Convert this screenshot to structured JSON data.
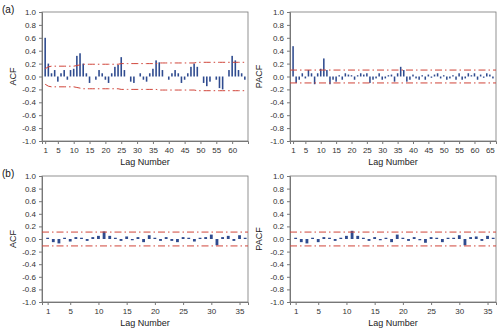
{
  "chart_data": [
    {
      "type": "bar",
      "title": "(a)",
      "y_label": "ACF",
      "x_label": "Lag Number",
      "color": "#2f4b8f",
      "x": [
        1,
        2,
        3,
        4,
        5,
        6,
        7,
        8,
        9,
        10,
        11,
        12,
        13,
        14,
        15,
        16,
        17,
        18,
        19,
        20,
        21,
        22,
        23,
        24,
        25,
        26,
        27,
        28,
        29,
        30,
        31,
        32,
        33,
        34,
        35,
        36,
        37,
        38,
        39,
        40,
        41,
        42,
        43,
        44,
        45,
        46,
        47,
        48,
        49,
        50,
        51,
        52,
        53,
        54,
        55,
        56,
        57,
        58,
        59,
        60,
        61,
        62,
        63,
        64
      ],
      "values": [
        0.6,
        0.2,
        0.05,
        0.1,
        -0.08,
        0.05,
        0.1,
        -0.05,
        0.1,
        0.12,
        0.32,
        0.36,
        0.2,
        0.05,
        -0.1,
        0,
        -0.05,
        0.1,
        0.05,
        -0.05,
        -0.1,
        0.05,
        0.15,
        0.18,
        0.3,
        0.1,
        0,
        -0.08,
        -0.1,
        0,
        0.05,
        -0.05,
        -0.08,
        0.05,
        0.12,
        0.25,
        0.22,
        0.1,
        0,
        -0.05,
        0.05,
        0.1,
        0.05,
        -0.1,
        -0.05,
        0.05,
        0.15,
        0.2,
        0.15,
        0,
        -0.1,
        -0.15,
        -0.08,
        0,
        -0.05,
        -0.18,
        -0.2,
        0,
        0.1,
        0.32,
        0.25,
        0.1,
        0.05,
        -0.05
      ],
      "confidence_limits": {
        "color": "#d0453a",
        "line_style": "dashdot",
        "upper": [
          0.12,
          0.15,
          0.16,
          0.16,
          0.16,
          0.16,
          0.16,
          0.16,
          0.16,
          0.16,
          0.17,
          0.18,
          0.19,
          0.19,
          0.19,
          0.19,
          0.19,
          0.19,
          0.19,
          0.19,
          0.19,
          0.19,
          0.19,
          0.19,
          0.2,
          0.2,
          0.2,
          0.2,
          0.2,
          0.2,
          0.2,
          0.2,
          0.2,
          0.2,
          0.2,
          0.2,
          0.21,
          0.21,
          0.21,
          0.21,
          0.21,
          0.21,
          0.21,
          0.21,
          0.21,
          0.21,
          0.21,
          0.21,
          0.22,
          0.22,
          0.22,
          0.22,
          0.22,
          0.22,
          0.22,
          0.22,
          0.22,
          0.22,
          0.22,
          0.22,
          0.22,
          0.22,
          0.22,
          0.22
        ],
        "lower": [
          -0.12,
          -0.15,
          -0.16,
          -0.16,
          -0.16,
          -0.16,
          -0.16,
          -0.16,
          -0.16,
          -0.16,
          -0.17,
          -0.18,
          -0.19,
          -0.19,
          -0.19,
          -0.19,
          -0.19,
          -0.19,
          -0.19,
          -0.19,
          -0.19,
          -0.19,
          -0.19,
          -0.19,
          -0.2,
          -0.2,
          -0.2,
          -0.2,
          -0.2,
          -0.2,
          -0.2,
          -0.2,
          -0.2,
          -0.2,
          -0.2,
          -0.2,
          -0.21,
          -0.21,
          -0.21,
          -0.21,
          -0.21,
          -0.21,
          -0.21,
          -0.21,
          -0.21,
          -0.21,
          -0.21,
          -0.21,
          -0.22,
          -0.22,
          -0.22,
          -0.22,
          -0.22,
          -0.22,
          -0.22,
          -0.22,
          -0.22,
          -0.22,
          -0.22,
          -0.22,
          -0.22,
          -0.22,
          -0.22,
          -0.22
        ]
      },
      "xlim": [
        0,
        65
      ],
      "xticks": [
        1,
        5,
        10,
        15,
        20,
        25,
        30,
        35,
        40,
        45,
        50,
        55,
        60
      ],
      "ylim": [
        -1,
        1
      ],
      "yticks": [
        {
          "value": -1,
          "label": "-1.0"
        },
        {
          "value": -0.8,
          "label": "-0.8"
        },
        {
          "value": -0.6,
          "label": "-0.6"
        },
        {
          "value": -0.4,
          "label": "-0.4"
        },
        {
          "value": -0.2,
          "label": "-0.2"
        },
        {
          "value": 0,
          "label": "0.0"
        },
        {
          "value": 0.2,
          "label": "0.2"
        },
        {
          "value": 0.4,
          "label": "0.4"
        },
        {
          "value": 0.6,
          "label": "0.6"
        },
        {
          "value": 0.8,
          "label": "0.8"
        },
        {
          "value": 1,
          "label": "1.0"
        }
      ]
    },
    {
      "type": "bar",
      "y_label": "PACF",
      "x_label": "Lag Number",
      "color": "#2f4b8f",
      "x": [
        1,
        2,
        3,
        4,
        5,
        6,
        7,
        8,
        9,
        10,
        11,
        12,
        13,
        14,
        15,
        16,
        17,
        18,
        19,
        20,
        21,
        22,
        23,
        24,
        25,
        26,
        27,
        28,
        29,
        30,
        31,
        32,
        33,
        34,
        35,
        36,
        37,
        38,
        39,
        40,
        41,
        42,
        43,
        44,
        45,
        46,
        47,
        48,
        49,
        50,
        51,
        52,
        53,
        54,
        55,
        56,
        57,
        58,
        59,
        60,
        61,
        62,
        63,
        64,
        65,
        66
      ],
      "values": [
        0.47,
        -0.1,
        -0.05,
        0.05,
        -0.03,
        0.1,
        0.05,
        -0.12,
        0.05,
        0.12,
        0.28,
        0.1,
        -0.12,
        -0.05,
        -0.08,
        0.02,
        -0.05,
        0.05,
        0.03,
        0.02,
        -0.05,
        0.02,
        0.05,
        0.03,
        0.05,
        -0.1,
        -0.05,
        -0.03,
        0.05,
        -0.05,
        -0.03,
        0.02,
        0.03,
        -0.08,
        0.05,
        0.15,
        0.1,
        -0.08,
        -0.05,
        0.03,
        -0.03,
        -0.05,
        0.02,
        -0.05,
        0.03,
        -0.02,
        0.03,
        0.05,
        -0.03,
        0.02,
        -0.05,
        -0.03,
        0.02,
        -0.05,
        0.05,
        -0.05,
        -0.03,
        0.05,
        0.02,
        0.05,
        -0.05,
        0.03,
        -0.02,
        0.05,
        0.03,
        -0.03
      ],
      "confidence_limits": {
        "color": "#d0453a",
        "line_style": "dashdot",
        "upper": 0.1,
        "lower": -0.1
      },
      "xlim": [
        0,
        67
      ],
      "xticks": [
        1,
        5,
        10,
        15,
        20,
        25,
        30,
        35,
        40,
        45,
        50,
        55,
        60,
        65
      ],
      "ylim": [
        -1,
        1
      ],
      "yticks": [
        {
          "value": -1,
          "label": "-1.0"
        },
        {
          "value": -0.8,
          "label": "-0.8"
        },
        {
          "value": -0.6,
          "label": "-0.6"
        },
        {
          "value": -0.4,
          "label": "-0.4"
        },
        {
          "value": -0.2,
          "label": "-0.2"
        },
        {
          "value": 0,
          "label": "0.0"
        },
        {
          "value": 0.2,
          "label": "0.2"
        },
        {
          "value": 0.4,
          "label": "0.4"
        },
        {
          "value": 0.6,
          "label": "0.6"
        },
        {
          "value": 0.8,
          "label": "0.8"
        },
        {
          "value": 1,
          "label": "1.0"
        }
      ]
    },
    {
      "type": "bar",
      "title": "(b)",
      "y_label": "ACF",
      "x_label": "Lag Number",
      "color": "#2f4b8f",
      "x": [
        1,
        2,
        3,
        4,
        5,
        6,
        7,
        8,
        9,
        10,
        11,
        12,
        13,
        14,
        15,
        16,
        17,
        18,
        19,
        20,
        21,
        22,
        23,
        24,
        25,
        26,
        27,
        28,
        29,
        30,
        31,
        32,
        33,
        34,
        35,
        36
      ],
      "values": [
        0.02,
        -0.05,
        -0.07,
        0.02,
        -0.04,
        0.03,
        0.02,
        -0.03,
        0.03,
        0.05,
        0.12,
        0.05,
        0.02,
        -0.03,
        0.04,
        -0.02,
        0.03,
        -0.05,
        0.06,
        0.02,
        -0.03,
        0.03,
        -0.03,
        -0.05,
        0.03,
        0.02,
        -0.04,
        0.02,
        0.03,
        0.07,
        -0.1,
        0.03,
        0.05,
        -0.03,
        0.06,
        0.02
      ],
      "confidence_limits": {
        "color": "#d0453a",
        "line_style": "dashdot",
        "upper": 0.11,
        "lower": -0.11
      },
      "xlim": [
        0,
        36.5
      ],
      "xticks": [
        1,
        5,
        10,
        15,
        20,
        25,
        30,
        35
      ],
      "ylim": [
        -1,
        1
      ],
      "yticks": [
        {
          "value": -1,
          "label": "-1.0"
        },
        {
          "value": -0.8,
          "label": "-0.8"
        },
        {
          "value": -0.6,
          "label": "-0.6"
        },
        {
          "value": -0.4,
          "label": "-0.4"
        },
        {
          "value": -0.2,
          "label": "-0.2"
        },
        {
          "value": 0,
          "label": "0.0"
        },
        {
          "value": 0.2,
          "label": "0.2"
        },
        {
          "value": 0.4,
          "label": "0.4"
        },
        {
          "value": 0.6,
          "label": "0.6"
        },
        {
          "value": 0.8,
          "label": "0.8"
        },
        {
          "value": 1,
          "label": "1.0"
        }
      ]
    },
    {
      "type": "bar",
      "y_label": "PACF",
      "x_label": "Lag Number",
      "color": "#2f4b8f",
      "x": [
        1,
        2,
        3,
        4,
        5,
        6,
        7,
        8,
        9,
        10,
        11,
        12,
        13,
        14,
        15,
        16,
        17,
        18,
        19,
        20,
        21,
        22,
        23,
        24,
        25,
        26,
        27,
        28,
        29,
        30,
        31,
        32,
        33,
        34,
        35,
        36
      ],
      "values": [
        0.02,
        -0.05,
        -0.07,
        0.02,
        -0.05,
        0.03,
        0.02,
        -0.03,
        0.02,
        0.05,
        0.13,
        0.05,
        0.02,
        -0.03,
        0.03,
        -0.02,
        0.02,
        -0.05,
        0.07,
        0.02,
        -0.03,
        0.03,
        -0.02,
        -0.06,
        0.03,
        0.02,
        -0.05,
        0.02,
        0.02,
        0.06,
        -0.1,
        0.03,
        0.04,
        -0.03,
        0.05,
        0.02
      ],
      "confidence_limits": {
        "color": "#d0453a",
        "line_style": "dashdot",
        "upper": 0.11,
        "lower": -0.11
      },
      "xlim": [
        0,
        36.5
      ],
      "xticks": [
        1,
        5,
        10,
        15,
        20,
        25,
        30,
        35
      ],
      "ylim": [
        -1,
        1
      ],
      "yticks": [
        {
          "value": -1,
          "label": "-1.0"
        },
        {
          "value": -0.8,
          "label": "-0.8"
        },
        {
          "value": -0.6,
          "label": "-0.6"
        },
        {
          "value": -0.4,
          "label": "-0.4"
        },
        {
          "value": -0.2,
          "label": "-0.2"
        },
        {
          "value": 0,
          "label": "0.0"
        },
        {
          "value": 0.2,
          "label": "0.2"
        },
        {
          "value": 0.4,
          "label": "0.4"
        },
        {
          "value": 0.6,
          "label": "0.6"
        },
        {
          "value": 0.8,
          "label": "0.8"
        },
        {
          "value": 1,
          "label": "1.0"
        }
      ]
    }
  ]
}
